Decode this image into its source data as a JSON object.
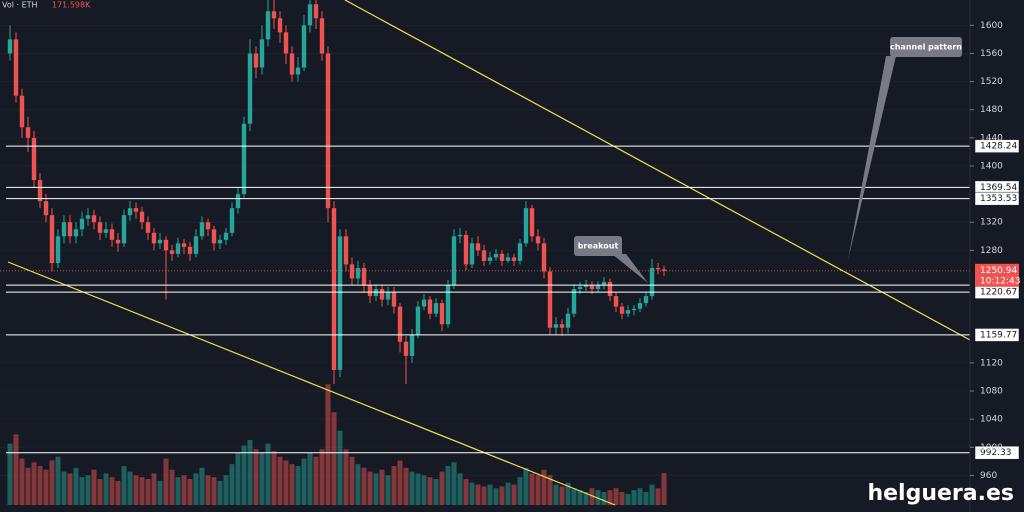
{
  "chart_data": {
    "type": "candlestick",
    "volume_label": "Vol · ETH",
    "volume_last_label": "171.598K",
    "ylim": [
      908,
      1636
    ],
    "yticks": [
      960,
      1000,
      1040,
      1080,
      1120,
      1280,
      1320,
      1400,
      1440,
      1480,
      1520,
      1560,
      1600
    ],
    "vlim": [
      0,
      700
    ],
    "up_color": "#26a69a",
    "down_color": "#ef5350",
    "levels": [
      1428.24,
      1369.54,
      1353.53,
      1230.62,
      1220.67,
      1159.77,
      992.33
    ],
    "countdown": "10:12:43",
    "annotations": [
      "channel pattern",
      "breakout"
    ],
    "watermark": "helguera.es",
    "ohlc": [
      [
        1560,
        1600,
        1550,
        1580
      ],
      [
        1580,
        1590,
        1490,
        1500
      ],
      [
        1500,
        1510,
        1440,
        1455
      ],
      [
        1455,
        1470,
        1420,
        1440
      ],
      [
        1440,
        1450,
        1370,
        1380
      ],
      [
        1380,
        1390,
        1340,
        1350
      ],
      [
        1350,
        1360,
        1320,
        1330
      ],
      [
        1330,
        1340,
        1250,
        1262
      ],
      [
        1262,
        1310,
        1255,
        1300
      ],
      [
        1300,
        1330,
        1290,
        1320
      ],
      [
        1320,
        1330,
        1290,
        1300
      ],
      [
        1300,
        1320,
        1290,
        1310
      ],
      [
        1310,
        1335,
        1300,
        1325
      ],
      [
        1325,
        1340,
        1315,
        1330
      ],
      [
        1330,
        1338,
        1310,
        1320
      ],
      [
        1320,
        1328,
        1295,
        1305
      ],
      [
        1305,
        1320,
        1298,
        1310
      ],
      [
        1310,
        1318,
        1285,
        1295
      ],
      [
        1295,
        1305,
        1278,
        1290
      ],
      [
        1290,
        1338,
        1285,
        1330
      ],
      [
        1330,
        1350,
        1322,
        1340
      ],
      [
        1340,
        1348,
        1325,
        1335
      ],
      [
        1335,
        1342,
        1310,
        1320
      ],
      [
        1320,
        1328,
        1295,
        1305
      ],
      [
        1305,
        1312,
        1280,
        1290
      ],
      [
        1290,
        1305,
        1282,
        1295
      ],
      [
        1295,
        1300,
        1210,
        1280
      ],
      [
        1280,
        1288,
        1265,
        1275
      ],
      [
        1275,
        1298,
        1270,
        1290
      ],
      [
        1290,
        1296,
        1275,
        1285
      ],
      [
        1285,
        1292,
        1265,
        1275
      ],
      [
        1275,
        1310,
        1270,
        1300
      ],
      [
        1300,
        1328,
        1295,
        1320
      ],
      [
        1320,
        1325,
        1300,
        1310
      ],
      [
        1310,
        1315,
        1280,
        1290
      ],
      [
        1290,
        1302,
        1282,
        1295
      ],
      [
        1295,
        1312,
        1288,
        1305
      ],
      [
        1305,
        1348,
        1300,
        1340
      ],
      [
        1340,
        1370,
        1332,
        1360
      ],
      [
        1360,
        1470,
        1355,
        1460
      ],
      [
        1460,
        1580,
        1450,
        1560
      ],
      [
        1560,
        1570,
        1525,
        1540
      ],
      [
        1540,
        1600,
        1530,
        1580
      ],
      [
        1580,
        1640,
        1570,
        1620
      ],
      [
        1620,
        1636,
        1595,
        1610
      ],
      [
        1610,
        1620,
        1575,
        1590
      ],
      [
        1590,
        1600,
        1545,
        1560
      ],
      [
        1560,
        1570,
        1520,
        1530
      ],
      [
        1530,
        1555,
        1520,
        1540
      ],
      [
        1540,
        1615,
        1535,
        1600
      ],
      [
        1600,
        1640,
        1590,
        1630
      ],
      [
        1630,
        1640,
        1595,
        1610
      ],
      [
        1610,
        1620,
        1550,
        1560
      ],
      [
        1560,
        1570,
        1320,
        1340
      ],
      [
        1340,
        1350,
        1090,
        1110
      ],
      [
        1110,
        1310,
        1100,
        1300
      ],
      [
        1300,
        1310,
        1250,
        1260
      ],
      [
        1260,
        1270,
        1230,
        1240
      ],
      [
        1240,
        1265,
        1232,
        1255
      ],
      [
        1255,
        1262,
        1220,
        1230
      ],
      [
        1230,
        1238,
        1205,
        1215
      ],
      [
        1215,
        1232,
        1208,
        1225
      ],
      [
        1225,
        1232,
        1200,
        1210
      ],
      [
        1210,
        1228,
        1202,
        1220
      ],
      [
        1220,
        1228,
        1190,
        1200
      ],
      [
        1200,
        1205,
        1135,
        1150
      ],
      [
        1150,
        1158,
        1090,
        1130
      ],
      [
        1130,
        1168,
        1120,
        1160
      ],
      [
        1160,
        1208,
        1155,
        1200
      ],
      [
        1200,
        1218,
        1195,
        1210
      ],
      [
        1210,
        1215,
        1182,
        1190
      ],
      [
        1190,
        1212,
        1185,
        1205
      ],
      [
        1205,
        1210,
        1165,
        1175
      ],
      [
        1175,
        1238,
        1170,
        1230
      ],
      [
        1230,
        1310,
        1225,
        1300
      ],
      [
        1300,
        1312,
        1290,
        1302
      ],
      [
        1302,
        1308,
        1252,
        1260
      ],
      [
        1260,
        1298,
        1255,
        1290
      ],
      [
        1290,
        1300,
        1272,
        1280
      ],
      [
        1280,
        1288,
        1258,
        1265
      ],
      [
        1265,
        1278,
        1260,
        1270
      ],
      [
        1270,
        1282,
        1265,
        1275
      ],
      [
        1275,
        1280,
        1258,
        1265
      ],
      [
        1265,
        1276,
        1262,
        1270
      ],
      [
        1270,
        1275,
        1258,
        1265
      ],
      [
        1265,
        1296,
        1260,
        1290
      ],
      [
        1290,
        1350,
        1285,
        1340
      ],
      [
        1340,
        1345,
        1292,
        1300
      ],
      [
        1300,
        1310,
        1280,
        1290
      ],
      [
        1290,
        1298,
        1240,
        1250
      ],
      [
        1250,
        1256,
        1160,
        1170
      ],
      [
        1170,
        1185,
        1160,
        1175
      ],
      [
        1175,
        1182,
        1158,
        1170
      ],
      [
        1170,
        1198,
        1162,
        1190
      ],
      [
        1190,
        1232,
        1185,
        1225
      ],
      [
        1225,
        1235,
        1218,
        1228
      ],
      [
        1228,
        1238,
        1222,
        1230
      ],
      [
        1230,
        1236,
        1218,
        1225
      ],
      [
        1225,
        1236,
        1220,
        1230
      ],
      [
        1230,
        1242,
        1225,
        1235
      ],
      [
        1235,
        1240,
        1208,
        1215
      ],
      [
        1215,
        1220,
        1192,
        1200
      ],
      [
        1200,
        1205,
        1182,
        1190
      ],
      [
        1190,
        1202,
        1185,
        1195
      ],
      [
        1195,
        1202,
        1188,
        1197
      ],
      [
        1197,
        1212,
        1192,
        1205
      ],
      [
        1205,
        1220,
        1200,
        1215
      ],
      [
        1215,
        1268,
        1210,
        1255
      ],
      [
        1255,
        1262,
        1246,
        1253
      ],
      [
        1253,
        1258,
        1244,
        1250.94
      ]
    ],
    "volumes": [
      330,
      380,
      250,
      200,
      230,
      210,
      190,
      240,
      260,
      180,
      170,
      200,
      150,
      160,
      190,
      140,
      170,
      150,
      130,
      210,
      180,
      160,
      150,
      140,
      170,
      130,
      250,
      190,
      150,
      160,
      140,
      170,
      200,
      160,
      150,
      130,
      160,
      220,
      280,
      320,
      350,
      300,
      280,
      330,
      290,
      260,
      240,
      220,
      210,
      250,
      280,
      260,
      300,
      650,
      500,
      400,
      300,
      260,
      220,
      200,
      180,
      170,
      190,
      160,
      210,
      240,
      200,
      180,
      170,
      160,
      150,
      140,
      180,
      210,
      230,
      170,
      140,
      120,
      110,
      100,
      110,
      90,
      100,
      120,
      110,
      150,
      200,
      170,
      160,
      190,
      160,
      110,
      100,
      120,
      90,
      80,
      70,
      90,
      80,
      70,
      80,
      90,
      70,
      60,
      80,
      90,
      70,
      110,
      90,
      171.598
    ]
  }
}
